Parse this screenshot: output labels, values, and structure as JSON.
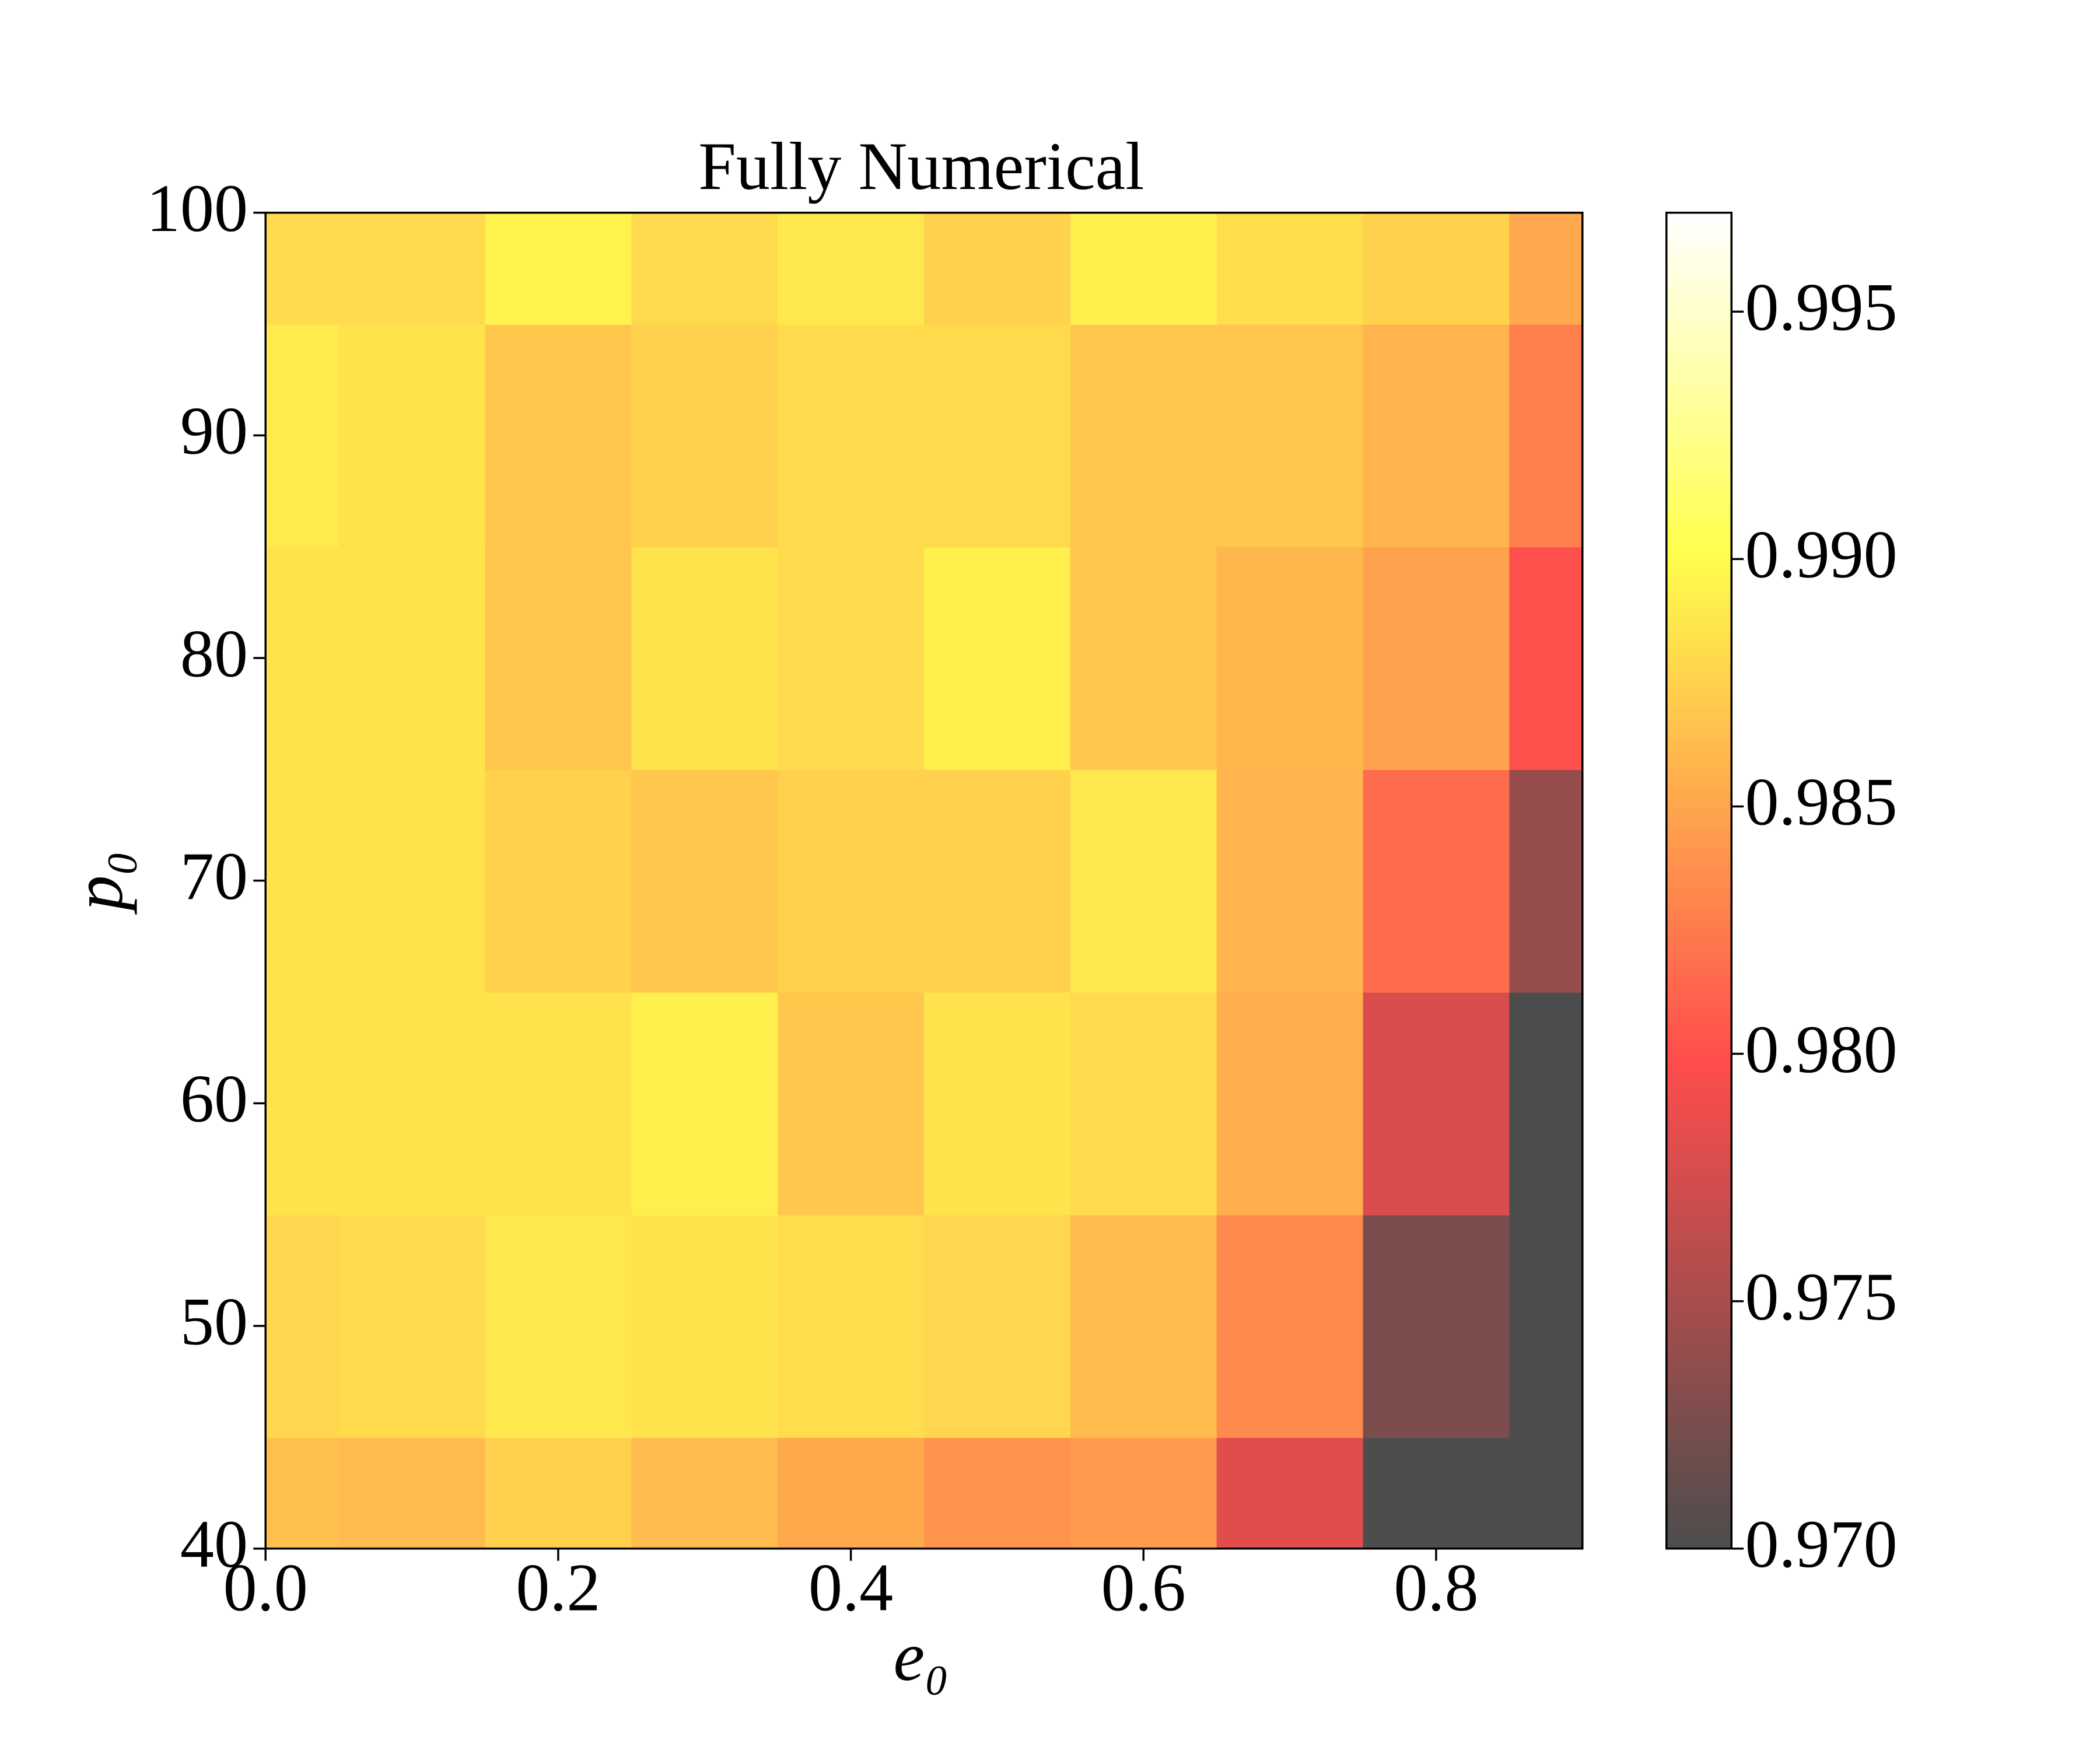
{
  "chart_data": {
    "type": "heatmap",
    "title": "Fully Numerical",
    "xlabel": "e₀",
    "ylabel": "p₀",
    "x": [
      0,
      0.1,
      0.2,
      0.3,
      0.4,
      0.5,
      0.6,
      0.7,
      0.8,
      0.9
    ],
    "y": [
      40,
      50,
      60,
      70,
      80,
      90,
      100
    ],
    "z": [
      [
        0.9865,
        0.9862,
        0.9875,
        0.9862,
        0.9852,
        0.984,
        0.9843,
        0.9782,
        0.97,
        0.97
      ],
      [
        0.9878,
        0.988,
        0.9888,
        0.9885,
        0.9882,
        0.9878,
        0.9862,
        0.9834,
        0.9726,
        0.97
      ],
      [
        0.9885,
        0.9885,
        0.9885,
        0.9892,
        0.987,
        0.9885,
        0.988,
        0.9855,
        0.9778,
        0.97
      ],
      [
        0.9885,
        0.9885,
        0.9875,
        0.987,
        0.9875,
        0.9875,
        0.9888,
        0.9858,
        0.9816,
        0.9741
      ],
      [
        0.9885,
        0.9885,
        0.9868,
        0.9885,
        0.988,
        0.9893,
        0.9868,
        0.986,
        0.9848,
        0.98
      ],
      [
        0.989,
        0.9885,
        0.987,
        0.9875,
        0.988,
        0.988,
        0.987,
        0.9868,
        0.9858,
        0.9828
      ],
      [
        0.988,
        0.988,
        0.9895,
        0.988,
        0.9888,
        0.9875,
        0.9893,
        0.9882,
        0.9875,
        0.9851
      ]
    ],
    "xlim": [
      0,
      0.9
    ],
    "ylim": [
      40,
      100
    ],
    "xticks": [
      {
        "value": 0,
        "label": "0.0"
      },
      0.2,
      0.4,
      0.6,
      0.8
    ],
    "yticks": [
      40,
      50,
      60,
      70,
      80,
      90,
      100
    ],
    "colormap": "hot",
    "alpha": 0.7,
    "clim": [
      0.97,
      0.997
    ],
    "cticks": [
      {
        "value": 0.97,
        "label": "0.970"
      },
      0.975,
      {
        "value": 0.98,
        "label": "0.980"
      },
      0.985,
      {
        "value": 0.99,
        "label": "0.990"
      },
      0.995
    ]
  }
}
